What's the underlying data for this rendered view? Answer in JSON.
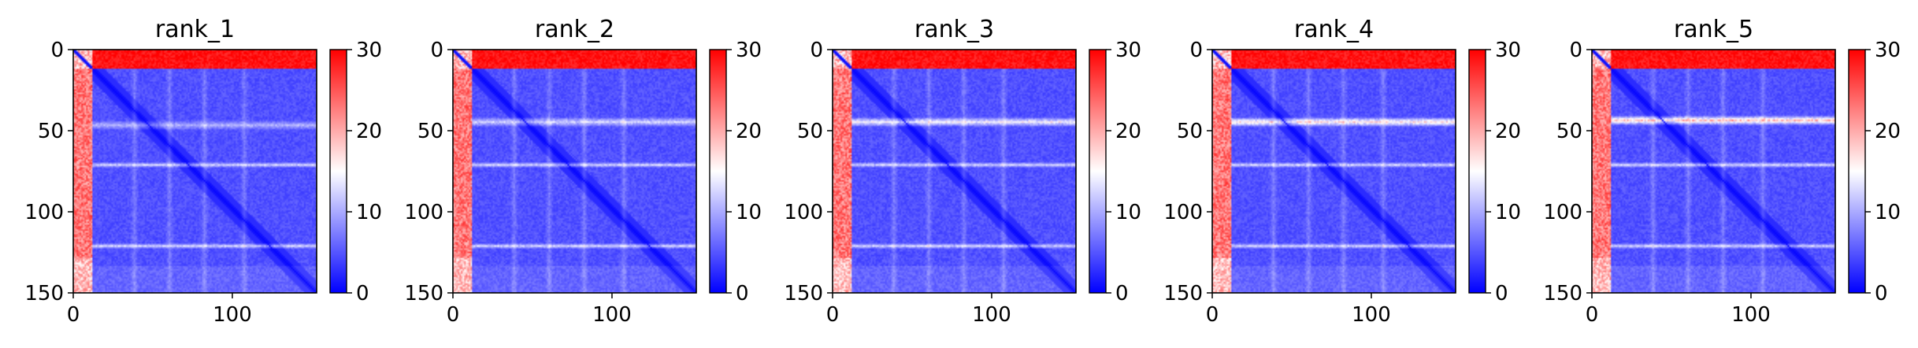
{
  "figure": {
    "panel_count": 5
  },
  "chart_data": [
    {
      "type": "heatmap",
      "title": "rank_1",
      "x_ticks": [
        0,
        100
      ],
      "y_ticks": [
        0,
        50,
        100,
        150
      ],
      "x_range": [
        0,
        153
      ],
      "y_range": [
        0,
        150
      ],
      "colorbar": {
        "ticks": [
          0,
          10,
          20,
          30
        ],
        "range": [
          0,
          30
        ],
        "colormap": "bwr",
        "colors": [
          "#0000ff",
          "#ffffff",
          "#ff0000"
        ]
      },
      "approx_structure": {
        "n_residues": 153,
        "disordered_terminus_end": 12,
        "white_bands_y": [
          47,
          72,
          123
        ],
        "stripe_x": [
          38,
          60,
          82,
          107
        ]
      }
    },
    {
      "type": "heatmap",
      "title": "rank_2",
      "x_ticks": [
        0,
        100
      ],
      "y_ticks": [
        0,
        50,
        100,
        150
      ],
      "x_range": [
        0,
        153
      ],
      "y_range": [
        0,
        150
      ],
      "colorbar": {
        "ticks": [
          0,
          10,
          20,
          30
        ],
        "range": [
          0,
          30
        ],
        "colormap": "bwr",
        "colors": [
          "#0000ff",
          "#ffffff",
          "#ff0000"
        ]
      },
      "approx_structure": {
        "n_residues": 153,
        "disordered_terminus_end": 12,
        "white_bands_y": [
          45,
          72,
          123
        ],
        "stripe_x": [
          38,
          60,
          82,
          107
        ]
      }
    },
    {
      "type": "heatmap",
      "title": "rank_3",
      "x_ticks": [
        0,
        100
      ],
      "y_ticks": [
        0,
        50,
        100,
        150
      ],
      "x_range": [
        0,
        153
      ],
      "y_range": [
        0,
        150
      ],
      "colorbar": {
        "ticks": [
          0,
          10,
          20,
          30
        ],
        "range": [
          0,
          30
        ],
        "colormap": "bwr",
        "colors": [
          "#0000ff",
          "#ffffff",
          "#ff0000"
        ]
      },
      "approx_structure": {
        "n_residues": 153,
        "disordered_terminus_end": 12,
        "white_bands_y": [
          45,
          72,
          123
        ],
        "stripe_x": [
          38,
          60,
          82,
          107
        ]
      }
    },
    {
      "type": "heatmap",
      "title": "rank_4",
      "x_ticks": [
        0,
        100
      ],
      "y_ticks": [
        0,
        50,
        100,
        150
      ],
      "x_range": [
        0,
        153
      ],
      "y_range": [
        0,
        150
      ],
      "colorbar": {
        "ticks": [
          0,
          10,
          20,
          30
        ],
        "range": [
          0,
          30
        ],
        "colormap": "bwr",
        "colors": [
          "#0000ff",
          "#ffffff",
          "#ff0000"
        ]
      },
      "approx_structure": {
        "n_residues": 153,
        "disordered_terminus_end": 12,
        "white_bands_y": [
          45,
          72,
          123
        ],
        "stripe_x": [
          38,
          60,
          82,
          107
        ]
      }
    },
    {
      "type": "heatmap",
      "title": "rank_5",
      "x_ticks": [
        0,
        100
      ],
      "y_ticks": [
        0,
        50,
        100,
        150
      ],
      "x_range": [
        0,
        153
      ],
      "y_range": [
        0,
        150
      ],
      "colorbar": {
        "ticks": [
          0,
          10,
          20,
          30
        ],
        "range": [
          0,
          30
        ],
        "colormap": "bwr",
        "colors": [
          "#0000ff",
          "#ffffff",
          "#ff0000"
        ]
      },
      "approx_structure": {
        "n_residues": 153,
        "disordered_terminus_end": 12,
        "white_bands_y": [
          44,
          72,
          123
        ],
        "stripe_x": [
          38,
          60,
          82,
          107
        ]
      }
    }
  ]
}
